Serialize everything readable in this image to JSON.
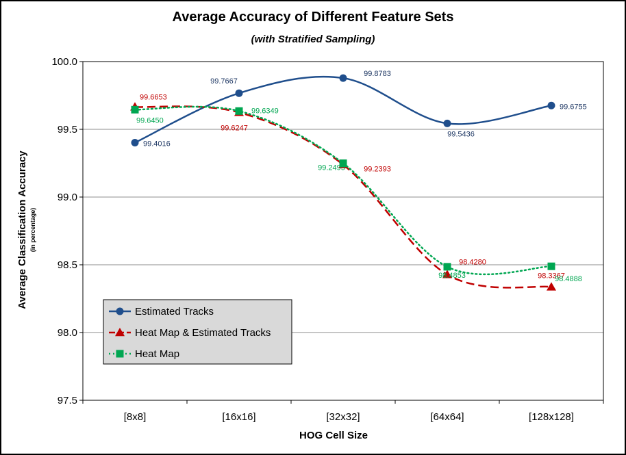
{
  "chart_data": {
    "type": "line",
    "title": "Average Accuracy of Different Feature Sets",
    "subtitle": "(with Stratified Sampling)",
    "xlabel": "HOG Cell Size",
    "ylabel": "Average Classification Accuracy",
    "ylabel_sub": "(in percentage)",
    "categories": [
      "[8x8]",
      "[16x16]",
      "[32x32]",
      "[64x64]",
      "[128x128]"
    ],
    "ylim": [
      97.5,
      100.0
    ],
    "yticks": [
      "97.5",
      "98.0",
      "98.5",
      "99.0",
      "99.5",
      "100.0"
    ],
    "grid": true,
    "legend_position": "bottom-left",
    "series": [
      {
        "name": "Estimated Tracks",
        "values": [
          99.4016,
          99.7667,
          99.8783,
          99.5436,
          99.6755
        ],
        "labels": [
          "99.4016",
          "99.7667",
          "99.8783",
          "99.5436",
          "99.6755"
        ],
        "color": "#1F4E8C",
        "marker": "circle",
        "dash": "solid"
      },
      {
        "name": "Heat Map & Estimated Tracks",
        "values": [
          99.6653,
          99.6247,
          99.2393,
          98.428,
          98.3367
        ],
        "labels": [
          "99.6653",
          "99.6247",
          "99.2393",
          "98.4280",
          "98.3367"
        ],
        "color": "#C00000",
        "marker": "triangle",
        "dash": "dashed"
      },
      {
        "name": "Heat Map",
        "values": [
          99.645,
          99.6349,
          99.2495,
          98.4853,
          98.4888
        ],
        "labels": [
          "99.6450",
          "99.6349",
          "99.2495",
          "98.4853",
          "98.4888"
        ],
        "color": "#00A651",
        "marker": "square",
        "dash": "dotted"
      }
    ]
  }
}
